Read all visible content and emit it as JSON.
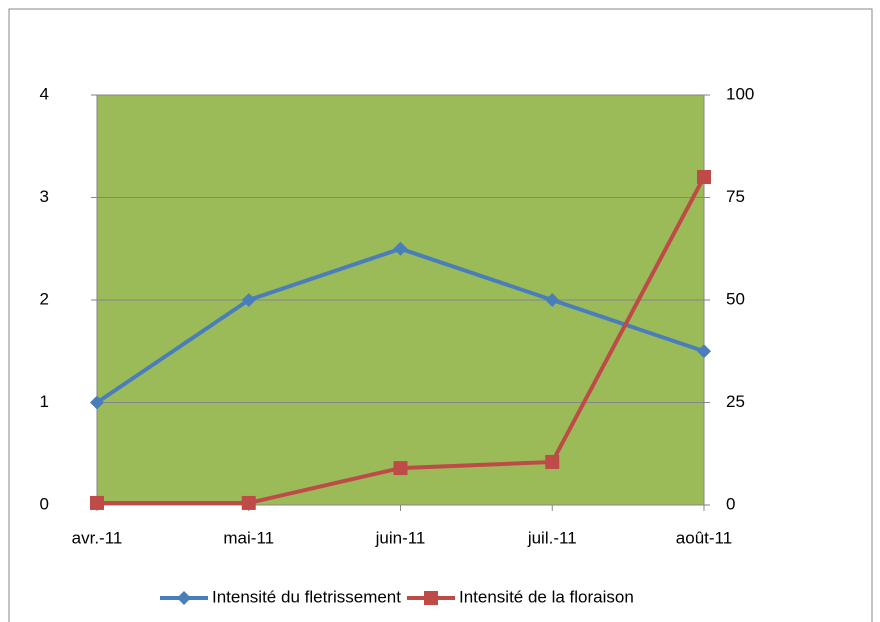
{
  "chart_data": {
    "type": "line",
    "categories": [
      "avr.-11",
      "mai-11",
      "juin-11",
      "juil.-11",
      "août-11"
    ],
    "series": [
      {
        "name": "Intensité du fletrissement",
        "color": "#4a7ebb",
        "marker": "diamond",
        "values": [
          1,
          2,
          2.5,
          2,
          1.5
        ]
      },
      {
        "name": "Intensité de la floraison",
        "color": "#be4b48",
        "marker": "square",
        "axis": "y2",
        "values": [
          0.5,
          0.5,
          9,
          10.5,
          80
        ]
      }
    ],
    "ylim": [
      0,
      4
    ],
    "yticks": [
      0,
      1,
      2,
      3,
      4
    ],
    "y2lim": [
      0,
      100
    ],
    "y2ticks": [
      0,
      25,
      50,
      75,
      100
    ],
    "grid": true,
    "plot_background": "#9bbb59",
    "legend": "bottom"
  }
}
